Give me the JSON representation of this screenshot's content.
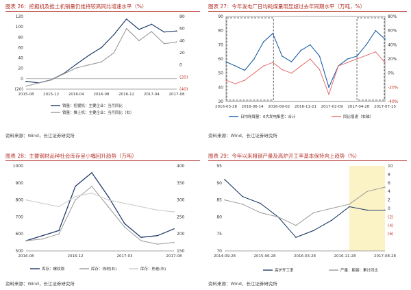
{
  "colors": {
    "title_red": "#b5332d",
    "navy": "#1f3a68",
    "gray": "#9a9a9a",
    "light_gray": "#c9c9c9",
    "blue": "#1a5fa8",
    "pink": "#e36f6f",
    "dark": "#222222",
    "yellow_bg": "#fbf3c6"
  },
  "panels": [
    {
      "title": "图表 26：挖掘机及推土机销量仍维持较高同比增速水平（%）",
      "source": "资料来源：Wind，长江证券研究所",
      "chart_data": {
        "type": "line",
        "y_left": {
          "min": -20,
          "max": 120,
          "ticks": [
            "120",
            "100",
            "80",
            "60",
            "40",
            "20",
            "0",
            "(20)"
          ]
        },
        "y_right": {
          "min": -40,
          "max": 80,
          "ticks": [
            "80",
            "60",
            "40",
            "20",
            "0",
            "(20)",
            "(40)"
          ]
        },
        "x_ticks": [
          "2015-08",
          "2015-12",
          "2016-04",
          "2016-08",
          "2016-12",
          "2017-04",
          "2017-08"
        ],
        "x": [
          "2015-08",
          "2015-10",
          "2015-12",
          "2016-02",
          "2016-04",
          "2016-06",
          "2016-08",
          "2016-10",
          "2016-12",
          "2017-02",
          "2017-04",
          "2017-06",
          "2017-08"
        ],
        "series": [
          {
            "name": "销量：挖掘机：主要企业：当月同比",
            "axis": "left",
            "values": [
              -5,
              -8,
              -2,
              10,
              28,
              45,
              60,
              85,
              115,
              95,
              105,
              90,
              92
            ]
          },
          {
            "name": "销量：推土机：主要企业：当月同比（右）",
            "axis": "right",
            "values": [
              -35,
              -30,
              -25,
              -15,
              -5,
              0,
              5,
              20,
              60,
              40,
              55,
              35,
              38
            ]
          }
        ]
      }
    },
    {
      "title": "图表 27：今年发电厂日均耗煤量明显超过去年同期水平（万吨，%）",
      "source": "资料来源：Wind，长江证券研究所",
      "chart_data": {
        "type": "line",
        "y_left": {
          "min": 30,
          "max": 90,
          "ticks": [
            "90",
            "80",
            "70",
            "60",
            "50",
            "40",
            "30"
          ]
        },
        "y_right": {
          "min": -40,
          "max": 80,
          "ticks": [
            "80%",
            "60%",
            "40%",
            "20%",
            "0%",
            "-20%",
            "-40%"
          ]
        },
        "x_ticks": [
          "2016-03-28",
          "2016-06-14",
          "2016-09-02",
          "2016-11-21",
          "2017-02-09",
          "2017-04-28",
          "2017-07-15"
        ],
        "x": [
          "2016-03",
          "2016-04",
          "2016-05",
          "2016-06",
          "2016-07",
          "2016-08",
          "2016-09",
          "2016-10",
          "2016-11",
          "2016-12",
          "2017-01",
          "2017-02",
          "2017-03",
          "2017-04",
          "2017-05",
          "2017-06",
          "2017-07",
          "2017-08"
        ],
        "series": [
          {
            "name": "日均耗煤量：6大发电集团：合计",
            "axis": "left",
            "values": [
              58,
              55,
              52,
              60,
              72,
              78,
              62,
              58,
              66,
              70,
              62,
              40,
              55,
              60,
              62,
              70,
              80,
              74
            ]
          },
          {
            "name": "同比增速（右轴）",
            "axis": "right",
            "values": [
              -10,
              -15,
              -10,
              0,
              10,
              15,
              5,
              0,
              10,
              20,
              5,
              -30,
              10,
              15,
              20,
              25,
              30,
              15
            ]
          }
        ],
        "annotations": [
          "dashed box 2016-03..2016-08",
          "dashed box 2017-05..2017-08"
        ]
      }
    },
    {
      "title": "图表 28：主要钢材品种社会库存呈小幅回升趋势（万吨）",
      "source": "资料来源：Wind，长江证券研究所",
      "chart_data": {
        "type": "line",
        "y_left": {
          "min": 500,
          "max": 1000,
          "ticks": [
            "1000",
            "900",
            "800",
            "700",
            "600",
            "500"
          ]
        },
        "y_right": {
          "min": 150,
          "max": 400,
          "ticks": [
            "400",
            "350",
            "300",
            "250",
            "200",
            "150"
          ]
        },
        "x_ticks": [
          "2016-08",
          "2016-12",
          "2017-03",
          "2017-08"
        ],
        "x": [
          "2016-08",
          "2016-10",
          "2016-12",
          "2017-02",
          "2017-03",
          "2017-04",
          "2017-05",
          "2017-06",
          "2017-07",
          "2017-08"
        ],
        "series": [
          {
            "name": "库存：螺纹钢",
            "axis": "left",
            "values": [
              560,
              590,
              620,
              880,
              960,
              820,
              660,
              580,
              590,
              630
            ]
          },
          {
            "name": "库存：线材(右)",
            "axis": "right",
            "values": [
              180,
              185,
              200,
              300,
              340,
              280,
              220,
              180,
              170,
              175
            ]
          },
          {
            "name": "库存：热卷(右)",
            "axis": "right",
            "values": [
              300,
              290,
              280,
              310,
              320,
              300,
              290,
              280,
              270,
              265
            ]
          }
        ]
      }
    },
    {
      "title": "图表 29：今年以来粗钢产量及高炉开工率基本保持向上趋势（%）",
      "source": "资料来源：Wind，长江证券研究所",
      "chart_data": {
        "type": "line",
        "y_left": {
          "min": 70,
          "max": 95,
          "ticks": [
            "95",
            "90",
            "85",
            "80",
            "75",
            "70"
          ]
        },
        "y_right": {
          "min": -10,
          "max": 10,
          "ticks": [
            "10",
            "8",
            "6",
            "4",
            "2",
            "0",
            "(2)",
            "(4)",
            "(6)"
          ]
        },
        "x_ticks": [
          "2014-09-28",
          "2015-06-28",
          "2016-03-28",
          "2016-11-28",
          "2017-08-28"
        ],
        "x": [
          "2014-09",
          "2015-01",
          "2015-05",
          "2015-09",
          "2016-01",
          "2016-05",
          "2016-09",
          "2017-01",
          "2017-05",
          "2017-08"
        ],
        "series": [
          {
            "name": "高炉开工率",
            "axis": "left",
            "values": [
              91,
              86,
              84,
              80,
              74,
              76,
              79,
              83,
              82,
              82
            ]
          },
          {
            "name": "产量：粗钢：累计同比",
            "axis": "right",
            "values": [
              2,
              1,
              -1,
              -2,
              -4,
              -1,
              0,
              1,
              4,
              5
            ]
          }
        ]
      }
    }
  ]
}
